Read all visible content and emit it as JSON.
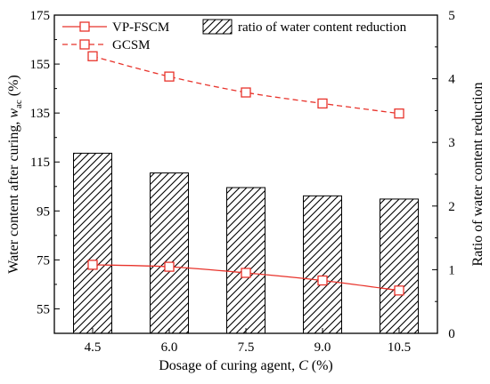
{
  "chart_data": {
    "type": "bar",
    "xlabel": {
      "text": "Dosage of curing agent, ",
      "var": "C",
      "unit": " (%)"
    },
    "ylabel_left": {
      "text": "Water content after curing, ",
      "var": "w",
      "sub": "ac",
      "unit": " (%)"
    },
    "ylabel_right": "Ratio of water content reduction",
    "categories": [
      "4.5",
      "6.0",
      "7.5",
      "9.0",
      "10.5"
    ],
    "ylim_left": [
      45,
      175
    ],
    "yticks_left": [
      "55",
      "75",
      "95",
      "115",
      "135",
      "155",
      "175"
    ],
    "ylim_right": [
      0,
      5
    ],
    "yticks_right": [
      "0",
      "1",
      "2",
      "3",
      "4",
      "5"
    ],
    "series": [
      {
        "name": "VP-FSCM",
        "axis": "left",
        "kind": "line",
        "style": "solid",
        "color": "#e8332b",
        "values": [
          73.0,
          72.2,
          69.7,
          66.6,
          62.5
        ]
      },
      {
        "name": "GCSM",
        "axis": "left",
        "kind": "line",
        "style": "dashed",
        "color": "#e8332b",
        "values": [
          158.2,
          149.9,
          143.4,
          138.9,
          134.8
        ]
      },
      {
        "name": "ratio of water content reduction",
        "axis": "right",
        "kind": "bar",
        "pattern": "diagonal-hatch",
        "values": [
          2.83,
          2.52,
          2.29,
          2.16,
          2.11
        ]
      }
    ],
    "legend_position": "top"
  }
}
